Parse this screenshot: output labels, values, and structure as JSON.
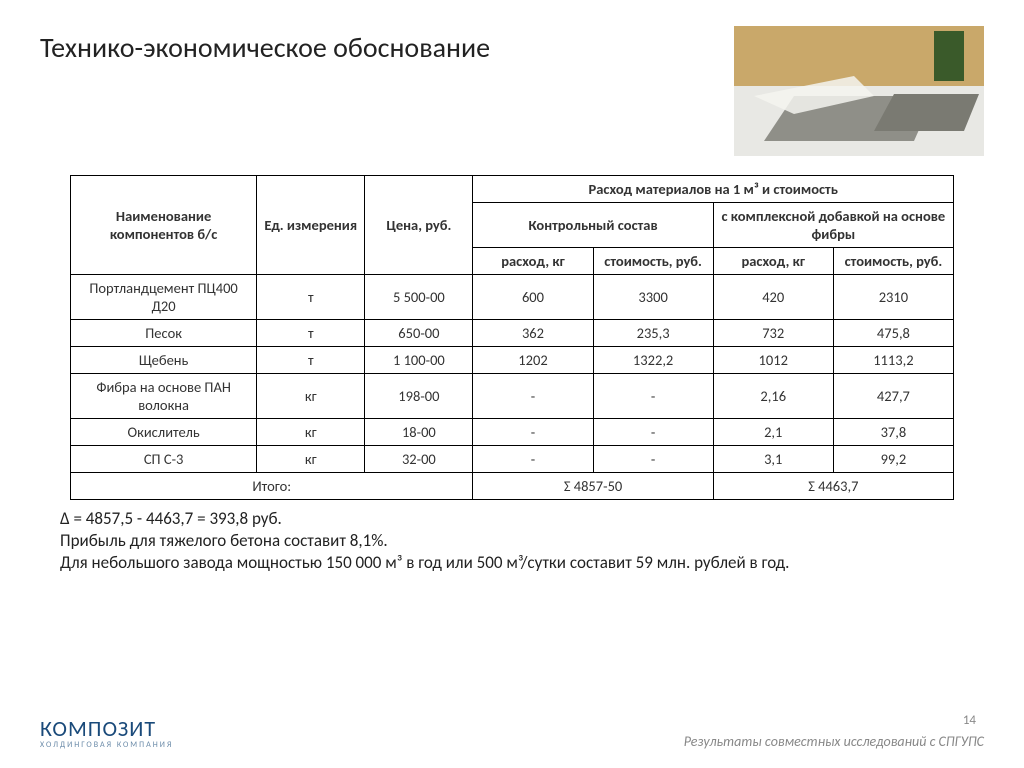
{
  "title": "Технико-экономическое обоснование",
  "table": {
    "head": {
      "name": "Наименование компонентов б/с",
      "unit": "Ед. измерения",
      "price": "Цена, руб.",
      "consumption_group": "Расход материалов на 1 м³ и стоимость",
      "control": "Контрольный состав",
      "additive": "с комплексной добавкой на основе фибры",
      "cons_kg": "расход, кг",
      "cost_rub": "стоимость, руб."
    },
    "rows": [
      {
        "name": "Портландцемент ПЦ400 Д20",
        "unit": "т",
        "price": "5 500-00",
        "c_kg": "600",
        "c_cost": "3300",
        "a_kg": "420",
        "a_cost": "2310"
      },
      {
        "name": "Песок",
        "unit": "т",
        "price": "650-00",
        "c_kg": "362",
        "c_cost": "235,3",
        "a_kg": "732",
        "a_cost": "475,8"
      },
      {
        "name": "Щебень",
        "unit": "т",
        "price": "1 100-00",
        "c_kg": "1202",
        "c_cost": "1322,2",
        "a_kg": "1012",
        "a_cost": "1113,2"
      },
      {
        "name": "Фибра на основе ПАН волокна",
        "unit": "кг",
        "price": "198-00",
        "c_kg": "-",
        "c_cost": "-",
        "a_kg": "2,16",
        "a_cost": "427,7"
      },
      {
        "name": "Окислитель",
        "unit": "кг",
        "price": "18-00",
        "c_kg": "-",
        "c_cost": "-",
        "a_kg": "2,1",
        "a_cost": "37,8"
      },
      {
        "name": "СП С-3",
        "unit": "кг",
        "price": "32-00",
        "c_kg": "-",
        "c_cost": "-",
        "a_kg": "3,1",
        "a_cost": "99,2"
      }
    ],
    "total": {
      "label": "Итого:",
      "control": "Σ 4857-50",
      "additive": "Σ 4463,7"
    }
  },
  "summary": {
    "line1": "Δ = 4857,5 - 4463,7 = 393,8 руб.",
    "line2": "Прибыль для тяжелого бетона составит 8,1%.",
    "line3": "Для небольшого завода мощностью 150 000 м³ в год или 500 м³/сутки составит 59 млн. рублей в год."
  },
  "footer": {
    "logo_main": "КОМПОЗИТ",
    "logo_sub": "ХОЛДИНГОВАЯ КОМПАНИЯ",
    "note": "Результаты совместных исследований с СПГУПС",
    "page": "14"
  },
  "colors": {
    "text": "#333333",
    "title": "#222222",
    "border": "#000000",
    "logo": "#1a4a7a",
    "logo_sub": "#6a8aa8",
    "footnote": "#888888"
  }
}
